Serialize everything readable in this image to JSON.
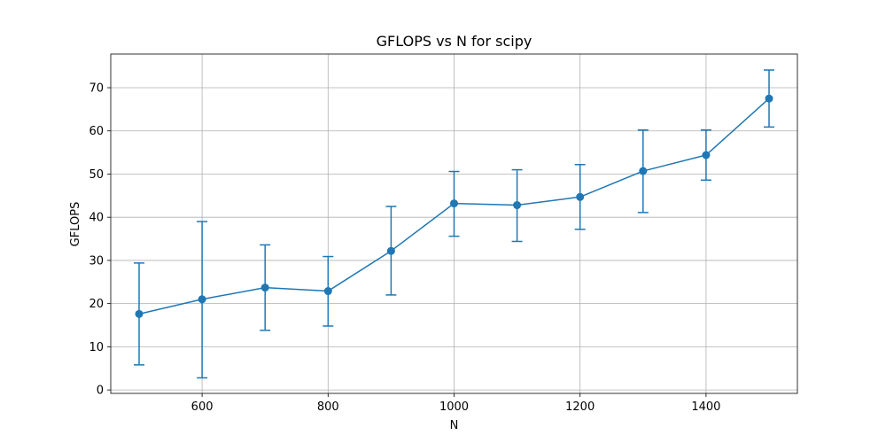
{
  "chart_data": {
    "type": "line",
    "title": "GFLOPS vs N for scipy",
    "xlabel": "N",
    "ylabel": "GFLOPS",
    "x": [
      500,
      600,
      700,
      800,
      900,
      1000,
      1100,
      1200,
      1300,
      1400,
      1500
    ],
    "series": [
      {
        "values": [
          17.6,
          21.0,
          23.7,
          22.9,
          32.2,
          43.2,
          42.8,
          44.7,
          50.7,
          54.4,
          67.5
        ],
        "err_lower": [
          5.8,
          2.8,
          13.8,
          14.8,
          22.0,
          35.6,
          34.4,
          37.2,
          41.1,
          48.6,
          60.9
        ],
        "err_upper": [
          29.4,
          39.0,
          33.6,
          30.9,
          42.5,
          50.6,
          51.0,
          52.2,
          60.2,
          60.2,
          74.1
        ],
        "color": "#1f77b4"
      }
    ],
    "xlim": [
      455,
      1545
    ],
    "ylim": [
      -0.8,
      77.8
    ],
    "xticks": [
      600,
      800,
      1000,
      1200,
      1400
    ],
    "yticks": [
      0,
      10,
      20,
      30,
      40,
      50,
      60,
      70
    ],
    "grid": true
  }
}
